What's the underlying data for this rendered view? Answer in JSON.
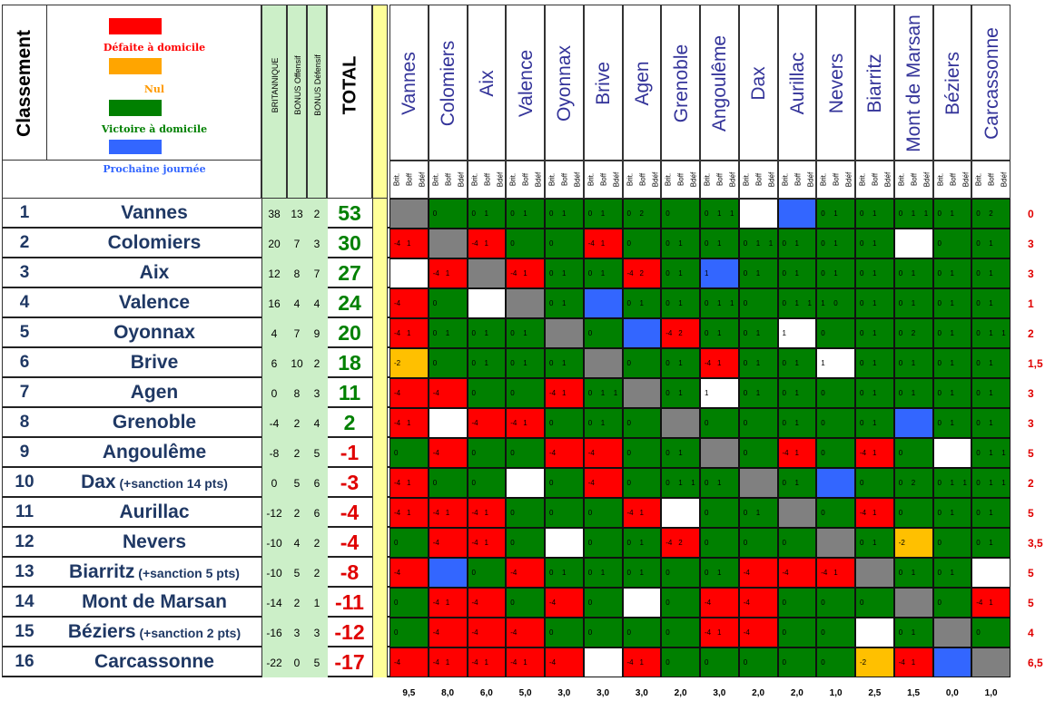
{
  "header": {
    "rank_label": "Classement",
    "britannique_label": "BRITANNIQUE",
    "bonus_off_label": "BONUS Offensif",
    "bonus_def_label": "BONUS Défensif",
    "total_label": "TOTAL",
    "sub_labels": [
      "Brit.",
      "Boff",
      "Bdéf"
    ]
  },
  "legend": {
    "items": [
      {
        "label": "Défaite à domicile",
        "color": "#ff0000",
        "text_color": "#ff0000"
      },
      {
        "label": "Nul",
        "color": "#ffa500",
        "text_color": "#ff9900"
      },
      {
        "label": "Victoire à domicile",
        "color": "#008000",
        "text_color": "#008000"
      },
      {
        "label": "Prochaine journée",
        "color": "#3366ff",
        "text_color": "#3366ff"
      }
    ]
  },
  "colors": {
    "R": "#ff0000",
    "G": "#008000",
    "Y": "#ffc000",
    "B": "#3366ff",
    "S": "#808080",
    "W": "#ffffff",
    "total_positive": "#008000",
    "total_negative": "#e00000"
  },
  "columns": [
    "Vannes",
    "Colomiers",
    "Aix",
    "Valence",
    "Oyonnax",
    "Brive",
    "Agen",
    "Grenoble",
    "Angoulême",
    "Dax",
    "Aurillac",
    "Nevers",
    "Biarritz",
    "Mont de Marsan",
    "Béziers",
    "Carcassonne"
  ],
  "teams": [
    {
      "rank": "1",
      "name": "Vannes",
      "sanction": "",
      "brit": "38",
      "boff": "13",
      "bdef": "2",
      "total": "53",
      "right": "0",
      "cells": [
        "S",
        "G",
        "G",
        "G",
        "G",
        "G",
        "G",
        "G",
        "G",
        "W",
        "B",
        "G",
        "G",
        "G",
        "G",
        "G"
      ],
      "vals": [
        [],
        [
          "0"
        ],
        [
          "0",
          "1"
        ],
        [
          "0",
          "1"
        ],
        [
          "0",
          "1"
        ],
        [
          "0",
          "1"
        ],
        [
          "0",
          "2"
        ],
        [
          "0"
        ],
        [
          "0",
          "1",
          "1"
        ],
        [],
        [],
        [
          "0",
          "1"
        ],
        [
          "0",
          "1"
        ],
        [
          "0",
          "1",
          "1"
        ],
        [
          "0",
          "1"
        ],
        [
          "0",
          "2"
        ]
      ]
    },
    {
      "rank": "2",
      "name": "Colomiers",
      "sanction": "",
      "brit": "20",
      "boff": "7",
      "bdef": "3",
      "total": "30",
      "right": "3",
      "cells": [
        "R",
        "S",
        "R",
        "G",
        "G",
        "R",
        "G",
        "G",
        "G",
        "G",
        "G",
        "G",
        "G",
        "W",
        "G",
        "G"
      ],
      "vals": [
        [
          "-4",
          "1"
        ],
        [],
        [
          "-4",
          "1"
        ],
        [
          "0"
        ],
        [
          "0"
        ],
        [
          "-4",
          "1"
        ],
        [
          "0"
        ],
        [
          "0",
          "1"
        ],
        [
          "0",
          "1"
        ],
        [
          "0",
          "1",
          "1"
        ],
        [
          "0",
          "1"
        ],
        [
          "0",
          "1"
        ],
        [
          "0",
          "1"
        ],
        [],
        [
          "0"
        ],
        [
          "0",
          "1"
        ]
      ]
    },
    {
      "rank": "3",
      "name": "Aix",
      "sanction": "",
      "brit": "12",
      "boff": "8",
      "bdef": "7",
      "total": "27",
      "right": "3",
      "cells": [
        "W",
        "R",
        "S",
        "R",
        "G",
        "G",
        "R",
        "G",
        "B",
        "G",
        "G",
        "G",
        "G",
        "G",
        "G",
        "G"
      ],
      "vals": [
        [],
        [
          "-4",
          "1"
        ],
        [],
        [
          "-4",
          "1"
        ],
        [
          "0",
          "1"
        ],
        [
          "0",
          "1"
        ],
        [
          "-4",
          "2"
        ],
        [
          "0",
          "1"
        ],
        [
          "1"
        ],
        [
          "0",
          "1"
        ],
        [
          "0",
          "1"
        ],
        [
          "0",
          "1"
        ],
        [
          "0",
          "1"
        ],
        [
          "0",
          "1"
        ],
        [
          "0",
          "1"
        ],
        [
          "0",
          "1"
        ]
      ]
    },
    {
      "rank": "4",
      "name": "Valence",
      "sanction": "",
      "brit": "16",
      "boff": "4",
      "bdef": "4",
      "total": "24",
      "right": "1",
      "cells": [
        "R",
        "G",
        "W",
        "S",
        "G",
        "B",
        "G",
        "G",
        "G",
        "G",
        "G",
        "G",
        "G",
        "G",
        "G",
        "G"
      ],
      "vals": [
        [
          "-4"
        ],
        [
          "0"
        ],
        [],
        [],
        [
          "0",
          "1"
        ],
        [],
        [
          "0",
          "1"
        ],
        [
          "0",
          "1"
        ],
        [
          "0",
          "1",
          "1"
        ],
        [
          "0"
        ],
        [
          "0",
          "1",
          "1"
        ],
        [
          "1",
          "0"
        ],
        [
          "0",
          "1"
        ],
        [
          "0",
          "1"
        ],
        [
          "0",
          "1"
        ],
        [
          "0",
          "1"
        ]
      ]
    },
    {
      "rank": "5",
      "name": "Oyonnax",
      "sanction": "",
      "brit": "4",
      "boff": "7",
      "bdef": "9",
      "total": "20",
      "right": "2",
      "cells": [
        "R",
        "G",
        "G",
        "G",
        "S",
        "G",
        "B",
        "R",
        "G",
        "G",
        "W",
        "G",
        "G",
        "G",
        "G",
        "G"
      ],
      "vals": [
        [
          "-4",
          "1"
        ],
        [
          "0",
          "1"
        ],
        [
          "0",
          "1"
        ],
        [
          "0",
          "1"
        ],
        [],
        [
          "0"
        ],
        [],
        [
          "-4",
          "2"
        ],
        [
          "0",
          "1"
        ],
        [
          "0",
          "1"
        ],
        [
          "1"
        ],
        [
          "0"
        ],
        [
          "0",
          "1"
        ],
        [
          "0",
          "2"
        ],
        [
          "0",
          "1"
        ],
        [
          "0",
          "1",
          "1"
        ]
      ]
    },
    {
      "rank": "6",
      "name": "Brive",
      "sanction": "",
      "brit": "6",
      "boff": "10",
      "bdef": "2",
      "total": "18",
      "right": "1,5",
      "cells": [
        "Y",
        "G",
        "G",
        "G",
        "G",
        "S",
        "G",
        "G",
        "R",
        "G",
        "G",
        "W",
        "G",
        "G",
        "G",
        "G"
      ],
      "vals": [
        [
          "-2"
        ],
        [
          "0"
        ],
        [
          "0",
          "1"
        ],
        [
          "0",
          "1"
        ],
        [
          "0",
          "1"
        ],
        [],
        [
          "0"
        ],
        [
          "0",
          "1"
        ],
        [
          "-4",
          "1"
        ],
        [
          "0",
          "1"
        ],
        [
          "0",
          "1"
        ],
        [
          "1"
        ],
        [
          "0",
          "1"
        ],
        [
          "0",
          "1"
        ],
        [
          "0",
          "1"
        ],
        [
          "0",
          "1"
        ]
      ]
    },
    {
      "rank": "7",
      "name": "Agen",
      "sanction": "",
      "brit": "0",
      "boff": "8",
      "bdef": "3",
      "total": "11",
      "right": "3",
      "cells": [
        "R",
        "R",
        "G",
        "G",
        "R",
        "G",
        "S",
        "G",
        "W",
        "G",
        "G",
        "G",
        "G",
        "G",
        "G",
        "G"
      ],
      "vals": [
        [
          "-4"
        ],
        [
          "-4"
        ],
        [
          "0"
        ],
        [
          "0"
        ],
        [
          "-4",
          "1"
        ],
        [
          "0",
          "1",
          "1"
        ],
        [],
        [
          "0",
          "1"
        ],
        [
          "1"
        ],
        [
          "0",
          "1"
        ],
        [
          "0",
          "1"
        ],
        [
          "0"
        ],
        [
          "0",
          "1"
        ],
        [
          "0",
          "1"
        ],
        [
          "0",
          "1"
        ],
        [
          "0",
          "1"
        ]
      ]
    },
    {
      "rank": "8",
      "name": "Grenoble",
      "sanction": "",
      "brit": "-4",
      "boff": "2",
      "bdef": "4",
      "total": "2",
      "right": "3",
      "cells": [
        "R",
        "W",
        "R",
        "R",
        "G",
        "G",
        "G",
        "S",
        "G",
        "G",
        "G",
        "G",
        "G",
        "B",
        "G",
        "G"
      ],
      "vals": [
        [
          "-4",
          "1"
        ],
        [],
        [
          "-4"
        ],
        [
          "-4",
          "1"
        ],
        [
          "0"
        ],
        [
          "0",
          "1"
        ],
        [
          "0"
        ],
        [],
        [
          "0"
        ],
        [
          "0"
        ],
        [
          "0",
          "1"
        ],
        [
          "0"
        ],
        [
          "0",
          "1"
        ],
        [],
        [
          "0",
          "1"
        ],
        [
          "0",
          "1"
        ]
      ]
    },
    {
      "rank": "9",
      "name": "Angoulême",
      "sanction": "",
      "brit": "-8",
      "boff": "2",
      "bdef": "5",
      "total": "-1",
      "right": "5",
      "cells": [
        "G",
        "R",
        "G",
        "G",
        "R",
        "R",
        "G",
        "G",
        "S",
        "G",
        "R",
        "G",
        "R",
        "G",
        "W",
        "G"
      ],
      "vals": [
        [
          "0"
        ],
        [
          "-4"
        ],
        [
          "0"
        ],
        [
          "0"
        ],
        [
          "-4"
        ],
        [
          "-4"
        ],
        [
          "0"
        ],
        [
          "0",
          "1"
        ],
        [],
        [
          "0"
        ],
        [
          "-4",
          "1"
        ],
        [
          "0"
        ],
        [
          "-4",
          "1"
        ],
        [
          "0"
        ],
        [],
        [
          "0",
          "1",
          "1"
        ]
      ]
    },
    {
      "rank": "10",
      "name": "Dax",
      "sanction": "(+sanction 14 pts)",
      "brit": "0",
      "boff": "5",
      "bdef": "6",
      "total": "-3",
      "right": "2",
      "cells": [
        "R",
        "G",
        "G",
        "W",
        "G",
        "R",
        "G",
        "G",
        "G",
        "S",
        "G",
        "B",
        "G",
        "G",
        "G",
        "G"
      ],
      "vals": [
        [
          "-4",
          "1"
        ],
        [
          "0"
        ],
        [
          "0"
        ],
        [],
        [
          "0"
        ],
        [
          "-4"
        ],
        [
          "0"
        ],
        [
          "0",
          "1",
          "1"
        ],
        [
          "0",
          "1"
        ],
        [],
        [
          "0",
          "1"
        ],
        [],
        [
          "0"
        ],
        [
          "0",
          "2"
        ],
        [
          "0",
          "1",
          "1"
        ],
        [
          "0",
          "1",
          "1"
        ]
      ]
    },
    {
      "rank": "11",
      "name": "Aurillac",
      "sanction": "",
      "brit": "-12",
      "boff": "2",
      "bdef": "6",
      "total": "-4",
      "right": "5",
      "cells": [
        "R",
        "R",
        "R",
        "G",
        "G",
        "G",
        "R",
        "W",
        "G",
        "G",
        "S",
        "G",
        "R",
        "G",
        "G",
        "G"
      ],
      "vals": [
        [
          "-4",
          "1"
        ],
        [
          "-4",
          "1"
        ],
        [
          "-4",
          "1"
        ],
        [
          "0"
        ],
        [
          "0"
        ],
        [
          "0"
        ],
        [
          "-4",
          "1"
        ],
        [],
        [
          "0"
        ],
        [
          "0",
          "1"
        ],
        [],
        [
          "0"
        ],
        [
          "-4",
          "1"
        ],
        [
          "0"
        ],
        [
          "0",
          "1"
        ],
        [
          "0",
          "1"
        ]
      ]
    },
    {
      "rank": "12",
      "name": "Nevers",
      "sanction": "",
      "brit": "-10",
      "boff": "4",
      "bdef": "2",
      "total": "-4",
      "right": "3,5",
      "cells": [
        "G",
        "R",
        "R",
        "G",
        "W",
        "G",
        "G",
        "R",
        "G",
        "G",
        "G",
        "S",
        "G",
        "Y",
        "G",
        "G"
      ],
      "vals": [
        [
          "0"
        ],
        [
          "-4"
        ],
        [
          "-4",
          "1"
        ],
        [
          "0"
        ],
        [],
        [
          "0"
        ],
        [
          "0",
          "1"
        ],
        [
          "-4",
          "2"
        ],
        [
          "0"
        ],
        [
          "0"
        ],
        [
          "0"
        ],
        [],
        [
          "0",
          "1"
        ],
        [
          "-2"
        ],
        [
          "0"
        ],
        [
          "0",
          "1"
        ]
      ]
    },
    {
      "rank": "13",
      "name": "Biarritz",
      "sanction": "(+sanction 5 pts)",
      "brit": "-10",
      "boff": "5",
      "bdef": "2",
      "total": "-8",
      "right": "5",
      "cells": [
        "R",
        "B",
        "G",
        "R",
        "G",
        "G",
        "G",
        "G",
        "G",
        "R",
        "R",
        "R",
        "S",
        "G",
        "G",
        "W"
      ],
      "vals": [
        [
          "-4"
        ],
        [],
        [
          "0"
        ],
        [
          "-4"
        ],
        [
          "0",
          "1"
        ],
        [
          "0",
          "1"
        ],
        [
          "0",
          "1"
        ],
        [
          "0"
        ],
        [
          "0",
          "1"
        ],
        [
          "-4"
        ],
        [
          "-4"
        ],
        [
          "-4",
          "1"
        ],
        [],
        [
          "0",
          "1"
        ],
        [
          "0",
          "1"
        ],
        []
      ]
    },
    {
      "rank": "14",
      "name": "Mont de Marsan",
      "sanction": "",
      "brit": "-14",
      "boff": "2",
      "bdef": "1",
      "total": "-11",
      "right": "5",
      "cells": [
        "G",
        "R",
        "R",
        "G",
        "R",
        "G",
        "W",
        "G",
        "R",
        "R",
        "G",
        "G",
        "G",
        "S",
        "G",
        "R"
      ],
      "vals": [
        [
          "0"
        ],
        [
          "-4",
          "1"
        ],
        [
          "-4"
        ],
        [
          "0"
        ],
        [
          "-4"
        ],
        [
          "0"
        ],
        [],
        [
          "0"
        ],
        [
          "-4"
        ],
        [
          "-4"
        ],
        [
          "0"
        ],
        [
          "0"
        ],
        [
          "0"
        ],
        [],
        [
          "0"
        ],
        [
          "-4",
          "1"
        ]
      ]
    },
    {
      "rank": "15",
      "name": "Béziers",
      "sanction": "(+sanction 2 pts)",
      "brit": "-16",
      "boff": "3",
      "bdef": "3",
      "total": "-12",
      "right": "4",
      "cells": [
        "G",
        "R",
        "R",
        "R",
        "G",
        "G",
        "G",
        "G",
        "R",
        "R",
        "G",
        "G",
        "W",
        "G",
        "S",
        "G"
      ],
      "vals": [
        [
          "0"
        ],
        [
          "-4"
        ],
        [
          "-4"
        ],
        [
          "-4"
        ],
        [
          "0"
        ],
        [
          "0"
        ],
        [
          "0"
        ],
        [
          "0"
        ],
        [
          "-4",
          "1"
        ],
        [
          "-4"
        ],
        [
          "0"
        ],
        [
          "0"
        ],
        [],
        [
          "0",
          "1"
        ],
        [],
        [
          "0"
        ]
      ]
    },
    {
      "rank": "16",
      "name": "Carcassonne",
      "sanction": "",
      "brit": "-22",
      "boff": "0",
      "bdef": "5",
      "total": "-17",
      "right": "6,5",
      "cells": [
        "R",
        "R",
        "R",
        "R",
        "R",
        "W",
        "R",
        "G",
        "G",
        "G",
        "G",
        "G",
        "Y",
        "R",
        "B",
        "S"
      ],
      "vals": [
        [
          "-4"
        ],
        [
          "-4",
          "1"
        ],
        [
          "-4",
          "1"
        ],
        [
          "-4",
          "1"
        ],
        [
          "-4"
        ],
        [],
        [
          "-4",
          "1"
        ],
        [
          "0"
        ],
        [
          "0"
        ],
        [
          "0"
        ],
        [
          "0"
        ],
        [
          "0"
        ],
        [
          "-2"
        ],
        [
          "-4",
          "1"
        ],
        [],
        []
      ]
    }
  ],
  "bottom_values": [
    "9,5",
    "8,0",
    "6,0",
    "5,0",
    "3,0",
    "3,0",
    "3,0",
    "2,0",
    "3,0",
    "2,0",
    "2,0",
    "1,0",
    "2,5",
    "1,5",
    "0,0",
    "1,0"
  ]
}
